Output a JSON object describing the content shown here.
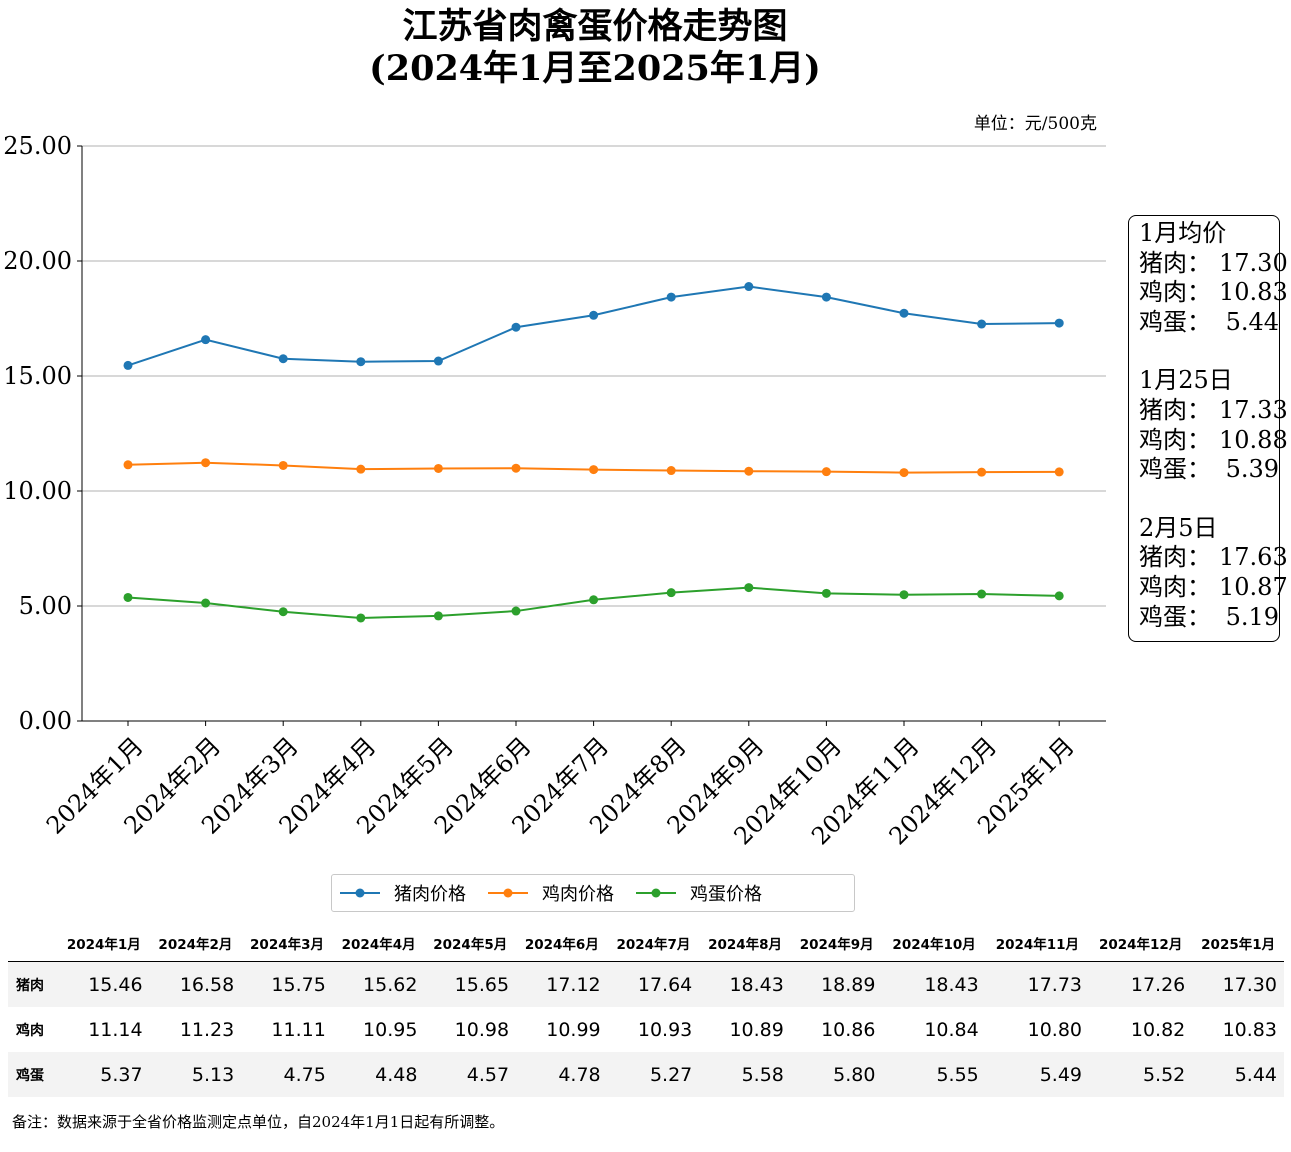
{
  "title_line1": "江苏省肉禽蛋价格走势图",
  "title_line2": "(2024年1月至2025年1月)",
  "unit_label": "单位：元/500克",
  "chart_data": {
    "type": "line",
    "categories": [
      "2024年1月",
      "2024年2月",
      "2024年3月",
      "2024年4月",
      "2024年5月",
      "2024年6月",
      "2024年7月",
      "2024年8月",
      "2024年9月",
      "2024年10月",
      "2024年11月",
      "2024年12月",
      "2025年1月"
    ],
    "series": [
      {
        "name": "猪肉价格",
        "color": "#1f77b4",
        "values": [
          15.46,
          16.58,
          15.75,
          15.62,
          15.65,
          17.12,
          17.64,
          18.43,
          18.89,
          18.43,
          17.73,
          17.26,
          17.3
        ]
      },
      {
        "name": "鸡肉价格",
        "color": "#ff7f0e",
        "values": [
          11.14,
          11.23,
          11.11,
          10.95,
          10.98,
          10.99,
          10.93,
          10.89,
          10.86,
          10.84,
          10.8,
          10.82,
          10.83
        ]
      },
      {
        "name": "鸡蛋价格",
        "color": "#2ca02c",
        "values": [
          5.37,
          5.13,
          4.75,
          4.48,
          4.57,
          4.78,
          5.27,
          5.58,
          5.8,
          5.55,
          5.49,
          5.52,
          5.44
        ]
      }
    ],
    "ylim": [
      0,
      25
    ],
    "yticks": [
      "0.00",
      "5.00",
      "10.00",
      "15.00",
      "20.00",
      "25.00"
    ],
    "grid": "horizontal",
    "legend_position": "bottom"
  },
  "infobox": [
    {
      "heading": "1月均价",
      "rows": [
        {
          "k": "猪肉：",
          "v": "17.30"
        },
        {
          "k": "鸡肉：",
          "v": "10.83"
        },
        {
          "k": "鸡蛋：",
          "v": "5.44"
        }
      ]
    },
    {
      "heading": "1月25日",
      "rows": [
        {
          "k": "猪肉：",
          "v": "17.33"
        },
        {
          "k": "鸡肉：",
          "v": "10.88"
        },
        {
          "k": "鸡蛋：",
          "v": "5.39"
        }
      ]
    },
    {
      "heading": "2月5日",
      "rows": [
        {
          "k": "猪肉：",
          "v": "17.63"
        },
        {
          "k": "鸡肉：",
          "v": "10.87"
        },
        {
          "k": "鸡蛋：",
          "v": "5.19"
        }
      ]
    }
  ],
  "table": {
    "rows": [
      {
        "label": "猪肉",
        "values": [
          "15.46",
          "16.58",
          "15.75",
          "15.62",
          "15.65",
          "17.12",
          "17.64",
          "18.43",
          "18.89",
          "18.43",
          "17.73",
          "17.26",
          "17.30"
        ]
      },
      {
        "label": "鸡肉",
        "values": [
          "11.14",
          "11.23",
          "11.11",
          "10.95",
          "10.98",
          "10.99",
          "10.93",
          "10.89",
          "10.86",
          "10.84",
          "10.80",
          "10.82",
          "10.83"
        ]
      },
      {
        "label": "鸡蛋",
        "values": [
          "5.37",
          "5.13",
          "4.75",
          "4.48",
          "4.57",
          "4.78",
          "5.27",
          "5.58",
          "5.80",
          "5.55",
          "5.49",
          "5.52",
          "5.44"
        ]
      }
    ]
  },
  "note": "备注：数据来源于全省价格监测定点单位，自2024年1月1日起有所调整。"
}
